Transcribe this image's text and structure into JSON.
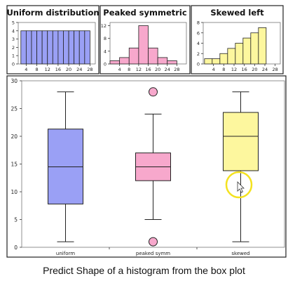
{
  "caption": "Predict Shape of a histogram from the box plot",
  "cursor": {
    "name": "pointer-cursor",
    "highlight_color": "#f4e21f"
  },
  "chart_data": [
    {
      "type": "bar",
      "title": "Uniform distribution",
      "color": "#9aa0f5",
      "bin_width": 2,
      "x": [
        3,
        5,
        7,
        9,
        11,
        13,
        15,
        17,
        19,
        21,
        23,
        25,
        27
      ],
      "values": [
        4,
        4,
        4,
        4,
        4,
        4,
        4,
        4,
        4,
        4,
        4,
        4,
        4
      ],
      "xlim": [
        1,
        30
      ],
      "ylim": [
        0,
        5
      ],
      "xticks": [
        4,
        8,
        12,
        16,
        20,
        24,
        28
      ],
      "yticks": [
        0,
        1,
        2,
        3,
        4,
        5
      ]
    },
    {
      "type": "bar",
      "title": "Peaked symmetric",
      "color": "#f7a8cc",
      "bin_width": 4,
      "x": [
        2,
        6,
        10,
        14,
        18,
        22,
        26,
        30
      ],
      "values": [
        1,
        2,
        5,
        12,
        5,
        2,
        1,
        0
      ],
      "xlim": [
        0,
        32
      ],
      "ylim": [
        0,
        13
      ],
      "xticks": [
        4,
        8,
        12,
        16,
        20,
        24,
        28
      ],
      "yticks": [
        0,
        4,
        8,
        12
      ]
    },
    {
      "type": "bar",
      "title": "Skewed left",
      "color": "#fdf79e",
      "bin_width": 3,
      "x": [
        2,
        5,
        8,
        11,
        14,
        17,
        20,
        23,
        26
      ],
      "values": [
        1,
        1,
        2,
        3,
        4,
        5,
        6,
        7,
        0
      ],
      "xlim": [
        0,
        30
      ],
      "ylim": [
        0,
        8
      ],
      "xticks": [
        4,
        8,
        12,
        16,
        20,
        24,
        28
      ],
      "yticks": [
        0,
        2,
        4,
        6,
        8
      ]
    },
    {
      "type": "box",
      "categories": [
        "uniform",
        "peaked symm",
        "skewed"
      ],
      "colors": [
        "#9aa0f5",
        "#f7a8cc",
        "#fdf79e"
      ],
      "ylim": [
        0,
        30
      ],
      "yticks": [
        0,
        5,
        10,
        15,
        20,
        25,
        30
      ],
      "boxes": [
        {
          "min": 1,
          "q1": 7.8,
          "median": 14.5,
          "q3": 21.3,
          "max": 28,
          "outliers": []
        },
        {
          "min": 5,
          "q1": 12,
          "median": 14.5,
          "q3": 17,
          "max": 24,
          "outliers": [
            1,
            28
          ]
        },
        {
          "min": 1,
          "q1": 13.8,
          "median": 20,
          "q3": 24.3,
          "max": 28,
          "outliers": []
        }
      ]
    }
  ]
}
